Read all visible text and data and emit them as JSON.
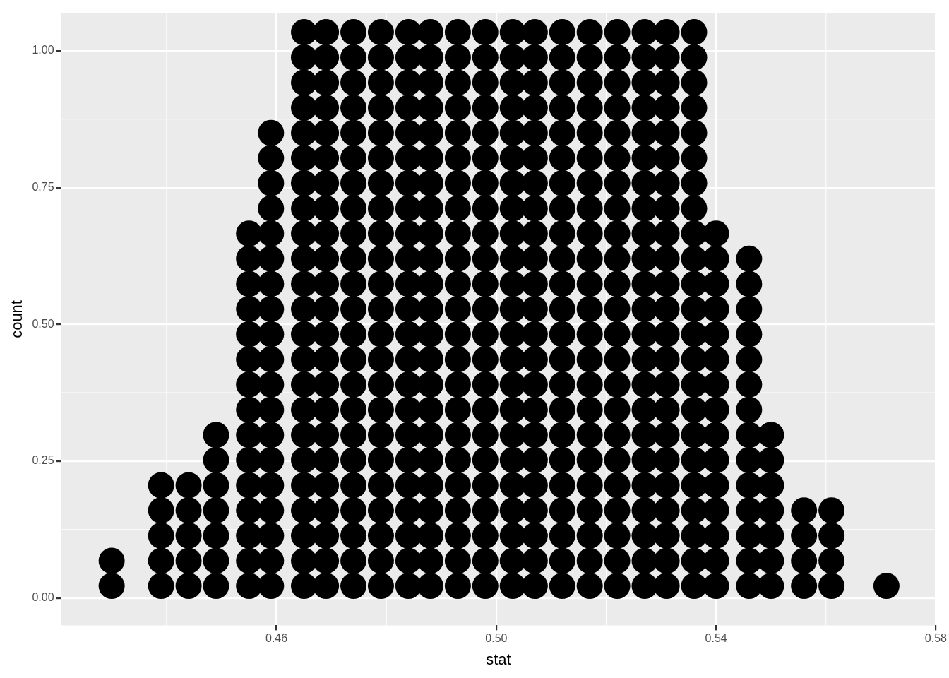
{
  "chart_data": {
    "type": "scatter",
    "xlabel": "stat",
    "ylabel": "count",
    "marker": "circle",
    "grid": true,
    "xlim": [
      0.4208,
      0.58
    ],
    "ylim": [
      -0.05,
      1.069
    ],
    "xticks": [
      0.46,
      {
        "value": 0.5,
        "label": "0.50"
      },
      0.54,
      0.58
    ],
    "yticks": [
      {
        "value": 0,
        "label": "0.00"
      },
      0.25,
      {
        "value": 0.5,
        "label": "0.50"
      },
      0.75,
      {
        "value": 1,
        "label": "1.00"
      }
    ],
    "series": [
      {
        "color": "#000000",
        "x": [
          0.43,
          0.43
        ],
        "values": [
          0.022,
          0.068
        ]
      },
      {
        "color": "#000000",
        "x": [
          0.439,
          0.439,
          0.439,
          0.439,
          0.439
        ],
        "values": [
          0.022,
          0.068,
          0.114,
          0.16,
          0.206
        ]
      },
      {
        "color": "#000000",
        "x": [
          0.444,
          0.444,
          0.444,
          0.444,
          0.444
        ],
        "values": [
          0.022,
          0.068,
          0.114,
          0.16,
          0.206
        ]
      },
      {
        "color": "#000000",
        "x": [
          0.449,
          0.449,
          0.449,
          0.449,
          0.449,
          0.449,
          0.449
        ],
        "values": [
          0.022,
          0.068,
          0.114,
          0.16,
          0.206,
          0.252,
          0.298
        ]
      },
      {
        "color": "#000000",
        "x": [
          0.455,
          0.455,
          0.455,
          0.455,
          0.455,
          0.455,
          0.455,
          0.455,
          0.455,
          0.455,
          0.455,
          0.455,
          0.455,
          0.455,
          0.455
        ],
        "values": [
          0.022,
          0.068,
          0.114,
          0.16,
          0.206,
          0.252,
          0.298,
          0.344,
          0.39,
          0.436,
          0.482,
          0.528,
          0.574,
          0.62,
          0.666
        ]
      },
      {
        "color": "#000000",
        "x": [
          0.459,
          0.459,
          0.459,
          0.459,
          0.459,
          0.459,
          0.459,
          0.459,
          0.459,
          0.459,
          0.459,
          0.459,
          0.459,
          0.459,
          0.459,
          0.459,
          0.459,
          0.459,
          0.459
        ],
        "values": [
          0.022,
          0.068,
          0.114,
          0.16,
          0.206,
          0.252,
          0.298,
          0.344,
          0.39,
          0.436,
          0.482,
          0.528,
          0.574,
          0.62,
          0.666,
          0.712,
          0.758,
          0.804,
          0.85
        ]
      },
      {
        "color": "#000000",
        "x": [
          0.465,
          0.465,
          0.465,
          0.465,
          0.465,
          0.465,
          0.465,
          0.465,
          0.465,
          0.465,
          0.465,
          0.465,
          0.465,
          0.465,
          0.465,
          0.465,
          0.465,
          0.465,
          0.465,
          0.465,
          0.465,
          0.465,
          0.465
        ],
        "values": [
          0.022,
          0.068,
          0.114,
          0.16,
          0.206,
          0.252,
          0.298,
          0.344,
          0.39,
          0.436,
          0.482,
          0.528,
          0.574,
          0.62,
          0.666,
          0.712,
          0.758,
          0.804,
          0.85,
          0.896,
          0.942,
          0.988,
          1.034
        ]
      },
      {
        "color": "#000000",
        "x": [
          0.469,
          0.469,
          0.469,
          0.469,
          0.469,
          0.469,
          0.469,
          0.469,
          0.469,
          0.469,
          0.469,
          0.469,
          0.469,
          0.469,
          0.469,
          0.469,
          0.469,
          0.469,
          0.469,
          0.469,
          0.469,
          0.469,
          0.469
        ],
        "values": [
          0.022,
          0.068,
          0.114,
          0.16,
          0.206,
          0.252,
          0.298,
          0.344,
          0.39,
          0.436,
          0.482,
          0.528,
          0.574,
          0.62,
          0.666,
          0.712,
          0.758,
          0.804,
          0.85,
          0.896,
          0.942,
          0.988,
          1.034
        ]
      },
      {
        "color": "#000000",
        "x": [
          0.474,
          0.474,
          0.474,
          0.474,
          0.474,
          0.474,
          0.474,
          0.474,
          0.474,
          0.474,
          0.474,
          0.474,
          0.474,
          0.474,
          0.474,
          0.474,
          0.474,
          0.474,
          0.474,
          0.474,
          0.474,
          0.474,
          0.474
        ],
        "values": [
          0.022,
          0.068,
          0.114,
          0.16,
          0.206,
          0.252,
          0.298,
          0.344,
          0.39,
          0.436,
          0.482,
          0.528,
          0.574,
          0.62,
          0.666,
          0.712,
          0.758,
          0.804,
          0.85,
          0.896,
          0.942,
          0.988,
          1.034
        ]
      },
      {
        "color": "#000000",
        "x": [
          0.479,
          0.479,
          0.479,
          0.479,
          0.479,
          0.479,
          0.479,
          0.479,
          0.479,
          0.479,
          0.479,
          0.479,
          0.479,
          0.479,
          0.479,
          0.479,
          0.479,
          0.479,
          0.479,
          0.479,
          0.479,
          0.479,
          0.479
        ],
        "values": [
          0.022,
          0.068,
          0.114,
          0.16,
          0.206,
          0.252,
          0.298,
          0.344,
          0.39,
          0.436,
          0.482,
          0.528,
          0.574,
          0.62,
          0.666,
          0.712,
          0.758,
          0.804,
          0.85,
          0.896,
          0.942,
          0.988,
          1.034
        ]
      },
      {
        "color": "#000000",
        "x": [
          0.484,
          0.484,
          0.484,
          0.484,
          0.484,
          0.484,
          0.484,
          0.484,
          0.484,
          0.484,
          0.484,
          0.484,
          0.484,
          0.484,
          0.484,
          0.484,
          0.484,
          0.484,
          0.484,
          0.484,
          0.484,
          0.484,
          0.484
        ],
        "values": [
          0.022,
          0.068,
          0.114,
          0.16,
          0.206,
          0.252,
          0.298,
          0.344,
          0.39,
          0.436,
          0.482,
          0.528,
          0.574,
          0.62,
          0.666,
          0.712,
          0.758,
          0.804,
          0.85,
          0.896,
          0.942,
          0.988,
          1.034
        ]
      },
      {
        "color": "#000000",
        "x": [
          0.488,
          0.488,
          0.488,
          0.488,
          0.488,
          0.488,
          0.488,
          0.488,
          0.488,
          0.488,
          0.488,
          0.488,
          0.488,
          0.488,
          0.488,
          0.488,
          0.488,
          0.488,
          0.488,
          0.488,
          0.488,
          0.488,
          0.488
        ],
        "values": [
          0.022,
          0.068,
          0.114,
          0.16,
          0.206,
          0.252,
          0.298,
          0.344,
          0.39,
          0.436,
          0.482,
          0.528,
          0.574,
          0.62,
          0.666,
          0.712,
          0.758,
          0.804,
          0.85,
          0.896,
          0.942,
          0.988,
          1.034
        ]
      },
      {
        "color": "#000000",
        "x": [
          0.493,
          0.493,
          0.493,
          0.493,
          0.493,
          0.493,
          0.493,
          0.493,
          0.493,
          0.493,
          0.493,
          0.493,
          0.493,
          0.493,
          0.493,
          0.493,
          0.493,
          0.493,
          0.493,
          0.493,
          0.493,
          0.493,
          0.493
        ],
        "values": [
          0.022,
          0.068,
          0.114,
          0.16,
          0.206,
          0.252,
          0.298,
          0.344,
          0.39,
          0.436,
          0.482,
          0.528,
          0.574,
          0.62,
          0.666,
          0.712,
          0.758,
          0.804,
          0.85,
          0.896,
          0.942,
          0.988,
          1.034
        ]
      },
      {
        "color": "#000000",
        "x": [
          0.498,
          0.498,
          0.498,
          0.498,
          0.498,
          0.498,
          0.498,
          0.498,
          0.498,
          0.498,
          0.498,
          0.498,
          0.498,
          0.498,
          0.498,
          0.498,
          0.498,
          0.498,
          0.498,
          0.498,
          0.498,
          0.498,
          0.498
        ],
        "values": [
          0.022,
          0.068,
          0.114,
          0.16,
          0.206,
          0.252,
          0.298,
          0.344,
          0.39,
          0.436,
          0.482,
          0.528,
          0.574,
          0.62,
          0.666,
          0.712,
          0.758,
          0.804,
          0.85,
          0.896,
          0.942,
          0.988,
          1.034
        ]
      },
      {
        "color": "#000000",
        "x": [
          0.503,
          0.503,
          0.503,
          0.503,
          0.503,
          0.503,
          0.503,
          0.503,
          0.503,
          0.503,
          0.503,
          0.503,
          0.503,
          0.503,
          0.503,
          0.503,
          0.503,
          0.503,
          0.503,
          0.503,
          0.503,
          0.503,
          0.503
        ],
        "values": [
          0.022,
          0.068,
          0.114,
          0.16,
          0.206,
          0.252,
          0.298,
          0.344,
          0.39,
          0.436,
          0.482,
          0.528,
          0.574,
          0.62,
          0.666,
          0.712,
          0.758,
          0.804,
          0.85,
          0.896,
          0.942,
          0.988,
          1.034
        ]
      },
      {
        "color": "#000000",
        "x": [
          0.507,
          0.507,
          0.507,
          0.507,
          0.507,
          0.507,
          0.507,
          0.507,
          0.507,
          0.507,
          0.507,
          0.507,
          0.507,
          0.507,
          0.507,
          0.507,
          0.507,
          0.507,
          0.507,
          0.507,
          0.507,
          0.507,
          0.507
        ],
        "values": [
          0.022,
          0.068,
          0.114,
          0.16,
          0.206,
          0.252,
          0.298,
          0.344,
          0.39,
          0.436,
          0.482,
          0.528,
          0.574,
          0.62,
          0.666,
          0.712,
          0.758,
          0.804,
          0.85,
          0.896,
          0.942,
          0.988,
          1.034
        ]
      },
      {
        "color": "#000000",
        "x": [
          0.512,
          0.512,
          0.512,
          0.512,
          0.512,
          0.512,
          0.512,
          0.512,
          0.512,
          0.512,
          0.512,
          0.512,
          0.512,
          0.512,
          0.512,
          0.512,
          0.512,
          0.512,
          0.512,
          0.512,
          0.512,
          0.512,
          0.512
        ],
        "values": [
          0.022,
          0.068,
          0.114,
          0.16,
          0.206,
          0.252,
          0.298,
          0.344,
          0.39,
          0.436,
          0.482,
          0.528,
          0.574,
          0.62,
          0.666,
          0.712,
          0.758,
          0.804,
          0.85,
          0.896,
          0.942,
          0.988,
          1.034
        ]
      },
      {
        "color": "#000000",
        "x": [
          0.517,
          0.517,
          0.517,
          0.517,
          0.517,
          0.517,
          0.517,
          0.517,
          0.517,
          0.517,
          0.517,
          0.517,
          0.517,
          0.517,
          0.517,
          0.517,
          0.517,
          0.517,
          0.517,
          0.517,
          0.517,
          0.517,
          0.517
        ],
        "values": [
          0.022,
          0.068,
          0.114,
          0.16,
          0.206,
          0.252,
          0.298,
          0.344,
          0.39,
          0.436,
          0.482,
          0.528,
          0.574,
          0.62,
          0.666,
          0.712,
          0.758,
          0.804,
          0.85,
          0.896,
          0.942,
          0.988,
          1.034
        ]
      },
      {
        "color": "#000000",
        "x": [
          0.522,
          0.522,
          0.522,
          0.522,
          0.522,
          0.522,
          0.522,
          0.522,
          0.522,
          0.522,
          0.522,
          0.522,
          0.522,
          0.522,
          0.522,
          0.522,
          0.522,
          0.522,
          0.522,
          0.522,
          0.522,
          0.522,
          0.522
        ],
        "values": [
          0.022,
          0.068,
          0.114,
          0.16,
          0.206,
          0.252,
          0.298,
          0.344,
          0.39,
          0.436,
          0.482,
          0.528,
          0.574,
          0.62,
          0.666,
          0.712,
          0.758,
          0.804,
          0.85,
          0.896,
          0.942,
          0.988,
          1.034
        ]
      },
      {
        "color": "#000000",
        "x": [
          0.527,
          0.527,
          0.527,
          0.527,
          0.527,
          0.527,
          0.527,
          0.527,
          0.527,
          0.527,
          0.527,
          0.527,
          0.527,
          0.527,
          0.527,
          0.527,
          0.527,
          0.527,
          0.527,
          0.527,
          0.527,
          0.527,
          0.527
        ],
        "values": [
          0.022,
          0.068,
          0.114,
          0.16,
          0.206,
          0.252,
          0.298,
          0.344,
          0.39,
          0.436,
          0.482,
          0.528,
          0.574,
          0.62,
          0.666,
          0.712,
          0.758,
          0.804,
          0.85,
          0.896,
          0.942,
          0.988,
          1.034
        ]
      },
      {
        "color": "#000000",
        "x": [
          0.531,
          0.531,
          0.531,
          0.531,
          0.531,
          0.531,
          0.531,
          0.531,
          0.531,
          0.531,
          0.531,
          0.531,
          0.531,
          0.531,
          0.531,
          0.531,
          0.531,
          0.531,
          0.531,
          0.531,
          0.531,
          0.531,
          0.531
        ],
        "values": [
          0.022,
          0.068,
          0.114,
          0.16,
          0.206,
          0.252,
          0.298,
          0.344,
          0.39,
          0.436,
          0.482,
          0.528,
          0.574,
          0.62,
          0.666,
          0.712,
          0.758,
          0.804,
          0.85,
          0.896,
          0.942,
          0.988,
          1.034
        ]
      },
      {
        "color": "#000000",
        "x": [
          0.536,
          0.536,
          0.536,
          0.536,
          0.536,
          0.536,
          0.536,
          0.536,
          0.536,
          0.536,
          0.536,
          0.536,
          0.536,
          0.536,
          0.536,
          0.536,
          0.536,
          0.536,
          0.536,
          0.536,
          0.536,
          0.536,
          0.536
        ],
        "values": [
          0.022,
          0.068,
          0.114,
          0.16,
          0.206,
          0.252,
          0.298,
          0.344,
          0.39,
          0.436,
          0.482,
          0.528,
          0.574,
          0.62,
          0.666,
          0.712,
          0.758,
          0.804,
          0.85,
          0.896,
          0.942,
          0.988,
          1.034
        ]
      },
      {
        "color": "#000000",
        "x": [
          0.54,
          0.54,
          0.54,
          0.54,
          0.54,
          0.54,
          0.54,
          0.54,
          0.54,
          0.54,
          0.54,
          0.54,
          0.54,
          0.54,
          0.54
        ],
        "values": [
          0.022,
          0.068,
          0.114,
          0.16,
          0.206,
          0.252,
          0.298,
          0.344,
          0.39,
          0.436,
          0.482,
          0.528,
          0.574,
          0.62,
          0.666
        ]
      },
      {
        "color": "#000000",
        "x": [
          0.546,
          0.546,
          0.546,
          0.546,
          0.546,
          0.546,
          0.546,
          0.546,
          0.546,
          0.546,
          0.546,
          0.546,
          0.546,
          0.546
        ],
        "values": [
          0.022,
          0.068,
          0.114,
          0.16,
          0.206,
          0.252,
          0.298,
          0.344,
          0.39,
          0.436,
          0.482,
          0.528,
          0.574,
          0.62
        ]
      },
      {
        "color": "#000000",
        "x": [
          0.55,
          0.55,
          0.55,
          0.55,
          0.55,
          0.55,
          0.55
        ],
        "values": [
          0.022,
          0.068,
          0.114,
          0.16,
          0.206,
          0.252,
          0.298
        ]
      },
      {
        "color": "#000000",
        "x": [
          0.556,
          0.556,
          0.556,
          0.556
        ],
        "values": [
          0.022,
          0.068,
          0.114,
          0.16
        ]
      },
      {
        "color": "#000000",
        "x": [
          0.561,
          0.561,
          0.561,
          0.561
        ],
        "values": [
          0.022,
          0.068,
          0.114,
          0.16
        ]
      },
      {
        "color": "#000000",
        "x": [
          0.571
        ],
        "values": [
          0.022
        ]
      }
    ]
  }
}
